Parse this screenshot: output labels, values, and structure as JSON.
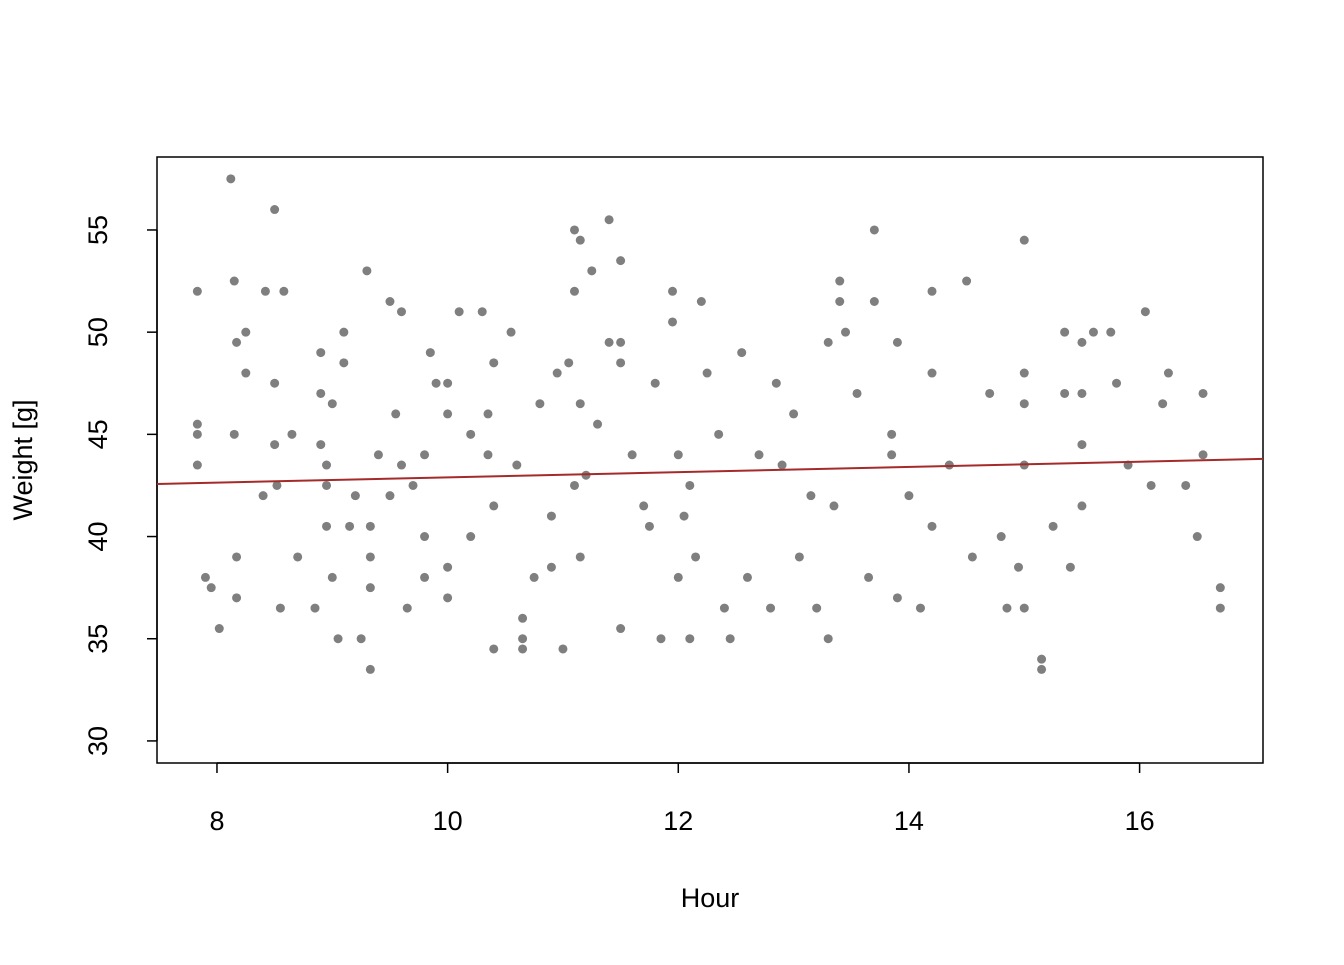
{
  "chart_data": {
    "type": "scatter",
    "xlabel": "Hour",
    "ylabel": "Weight [g]",
    "color": "#00000080",
    "x": [
      7.83,
      7.83,
      7.83,
      7.83,
      7.9,
      7.95,
      8.02,
      8.12,
      8.15,
      8.15,
      8.17,
      8.17,
      8.17,
      8.25,
      8.25,
      8.4,
      8.42,
      8.5,
      8.5,
      8.5,
      8.52,
      8.58,
      8.55,
      8.65,
      8.7,
      8.85,
      8.9,
      8.9,
      8.9,
      8.95,
      8.95,
      9,
      9,
      9.05,
      9.1,
      9.1,
      9.15,
      9.25,
      9.3,
      9.33,
      9.33,
      9.33,
      9.33,
      9.4,
      9.5,
      9.55,
      9.6,
      9.6,
      9.65,
      9.8,
      9.8,
      9.8,
      9.85,
      9.9,
      10,
      10,
      10,
      10,
      10.1,
      10.2,
      10.3,
      10.35,
      10.35,
      10.4,
      10.4,
      10.4,
      10.55,
      10.65,
      10.65,
      10.65,
      10.75,
      10.8,
      10.9,
      10.95,
      11,
      11.05,
      11.1,
      11.1,
      11.15,
      11.15,
      11.15,
      11.2,
      11.25,
      11.3,
      11.4,
      11.4,
      11.5,
      11.5,
      11.5,
      11.5,
      11.7,
      11.75,
      11.8,
      11.85,
      11.95,
      11.95,
      12,
      12,
      12.1,
      12.1,
      12.15,
      12.2,
      12.25,
      12.35,
      12.4,
      12.45,
      12.55,
      12.6,
      12.7,
      12.8,
      12.85,
      12.9,
      13,
      13.05,
      13.15,
      13.2,
      13.3,
      13.3,
      13.35,
      13.4,
      13.4,
      13.45,
      13.55,
      13.65,
      13.7,
      13.7,
      13.85,
      13.85,
      13.9,
      13.9,
      14,
      14.1,
      14.2,
      14.2,
      14.2,
      14.35,
      14.5,
      14.55,
      14.7,
      14.8,
      14.85,
      14.95,
      15,
      15,
      15,
      15,
      15,
      15.15,
      15.15,
      15.25,
      15.35,
      15.35,
      15.4,
      15.5,
      15.5,
      15.5,
      15.5,
      15.6,
      15.75,
      15.8,
      15.9,
      16.05,
      16.1,
      16.2,
      16.25,
      16.4,
      16.5,
      16.55,
      16.55,
      16.7,
      16.7,
      9.5,
      9.7,
      10.2,
      10.6,
      10.9,
      11.1,
      11.6,
      12.05,
      9.2,
      8.95
    ],
    "y": [
      52,
      45.5,
      45,
      43.5,
      38,
      37.5,
      35.5,
      57.5,
      52.5,
      45,
      49.5,
      39,
      37,
      50,
      48,
      42,
      52,
      56,
      47.5,
      44.5,
      42.5,
      52,
      36.5,
      45,
      39,
      36.5,
      49,
      47,
      44.5,
      43.5,
      40.5,
      46.5,
      38,
      35,
      50,
      48.5,
      40.5,
      35,
      53,
      40.5,
      39,
      37.5,
      33.5,
      44,
      51.5,
      46,
      51,
      43.5,
      36.5,
      44,
      40,
      38,
      49,
      47.5,
      47.5,
      46,
      37,
      38.5,
      51,
      45,
      51,
      46,
      44,
      41.5,
      34.5,
      48.5,
      50,
      36,
      35,
      34.5,
      38,
      46.5,
      38.5,
      48,
      34.5,
      48.5,
      52,
      55,
      54.5,
      39,
      46.5,
      43,
      53,
      45.5,
      49.5,
      55.5,
      53.5,
      49.5,
      48.5,
      35.5,
      41.5,
      40.5,
      47.5,
      35,
      52,
      50.5,
      44,
      38,
      35,
      42.5,
      39,
      51.5,
      48,
      45,
      36.5,
      35,
      49,
      38,
      44,
      36.5,
      47.5,
      43.5,
      46,
      39,
      42,
      36.5,
      49.5,
      35,
      41.5,
      52.5,
      51.5,
      50,
      47,
      38,
      55,
      51.5,
      45,
      44,
      49.5,
      37,
      42,
      36.5,
      52,
      48,
      40.5,
      43.5,
      52.5,
      39,
      47,
      40,
      36.5,
      38.5,
      54.5,
      48,
      46.5,
      43.5,
      36.5,
      34,
      33.5,
      40.5,
      50,
      47,
      38.5,
      49.5,
      47,
      44.5,
      41.5,
      50,
      50,
      47.5,
      43.5,
      51,
      42.5,
      46.5,
      48,
      42.5,
      40,
      44,
      47,
      37.5,
      36.5,
      42,
      42.5,
      40,
      43.5,
      41,
      42.5,
      44,
      41,
      42,
      42.5
    ],
    "trend_line": {
      "x": [
        7.48,
        17.07
      ],
      "y": [
        42.57,
        43.8
      ],
      "color": "#a52a2a"
    },
    "xlim": [
      7.48,
      17.07
    ],
    "ylim": [
      28.92,
      58.57
    ],
    "xticks": [
      8,
      10,
      12,
      14,
      16
    ],
    "yticks": [
      30,
      35,
      40,
      45,
      50,
      55
    ]
  }
}
